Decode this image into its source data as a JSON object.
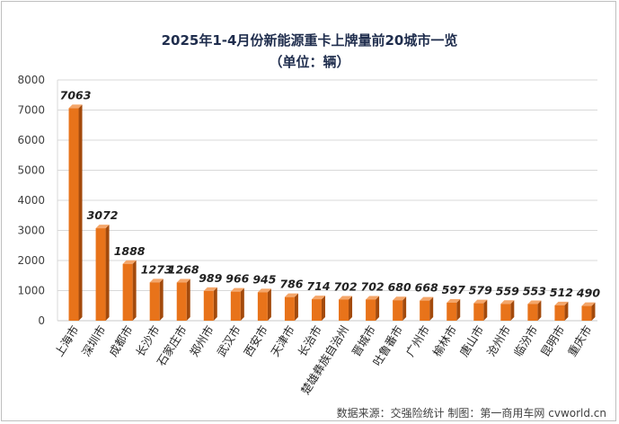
{
  "chart_data": {
    "type": "bar",
    "title": "2025年1-4月份新能源重卡上牌量前20城市一览",
    "subtitle": "（单位：辆）",
    "categories": [
      "上海市",
      "深圳市",
      "成都市",
      "长沙市",
      "石家庄市",
      "郑州市",
      "武汉市",
      "西安市",
      "天津市",
      "长治市",
      "楚雄彝族自治州",
      "晋城市",
      "吐鲁番市",
      "广州市",
      "榆林市",
      "唐山市",
      "沧州市",
      "临汾市",
      "昆明市",
      "重庆市"
    ],
    "values": [
      7063,
      3072,
      1888,
      1273,
      1268,
      989,
      966,
      945,
      786,
      714,
      702,
      702,
      680,
      668,
      597,
      579,
      559,
      553,
      512,
      490
    ],
    "ylim": [
      0,
      8000
    ],
    "yticks": [
      "0",
      "1000",
      "2000",
      "3000",
      "4000",
      "5000",
      "6000",
      "7000",
      "8000"
    ],
    "xlabel": "",
    "ylabel": "",
    "grid": true,
    "bar_color": "#e8731a",
    "bar_side_color": "#a34a0c",
    "bar_top_color": "#f4a66a"
  },
  "source_text": "数据来源：交强险统计   制图：第一商用车网 cvworld.cn"
}
